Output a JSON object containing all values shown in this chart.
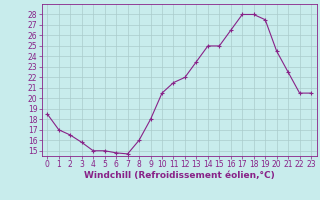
{
  "x": [
    0,
    1,
    2,
    3,
    4,
    5,
    6,
    7,
    8,
    9,
    10,
    11,
    12,
    13,
    14,
    15,
    16,
    17,
    18,
    19,
    20,
    21,
    22,
    23
  ],
  "y": [
    18.5,
    17.0,
    16.5,
    15.8,
    15.0,
    15.0,
    14.8,
    14.7,
    16.0,
    18.0,
    20.5,
    21.5,
    22.0,
    23.5,
    25.0,
    25.0,
    26.5,
    28.0,
    28.0,
    27.5,
    24.5,
    22.5,
    20.5,
    20.5
  ],
  "line_color": "#882288",
  "marker": "+",
  "bg_color": "#c8ecec",
  "grid_color": "#aacccc",
  "axis_color": "#882288",
  "xlabel": "Windchill (Refroidissement éolien,°C)",
  "xlim": [
    -0.5,
    23.5
  ],
  "ylim": [
    14.5,
    29.0
  ],
  "yticks": [
    15,
    16,
    17,
    18,
    19,
    20,
    21,
    22,
    23,
    24,
    25,
    26,
    27,
    28
  ],
  "ytick_labels": [
    "15",
    "16",
    "17",
    "18",
    "19",
    "20",
    "21",
    "22",
    "23",
    "24",
    "25",
    "26",
    "27",
    "28"
  ],
  "xticks": [
    0,
    1,
    2,
    3,
    4,
    5,
    6,
    7,
    8,
    9,
    10,
    11,
    12,
    13,
    14,
    15,
    16,
    17,
    18,
    19,
    20,
    21,
    22,
    23
  ],
  "tick_font_size": 5.5,
  "xlabel_font_size": 6.5,
  "marker_size": 3,
  "linewidth": 0.8
}
